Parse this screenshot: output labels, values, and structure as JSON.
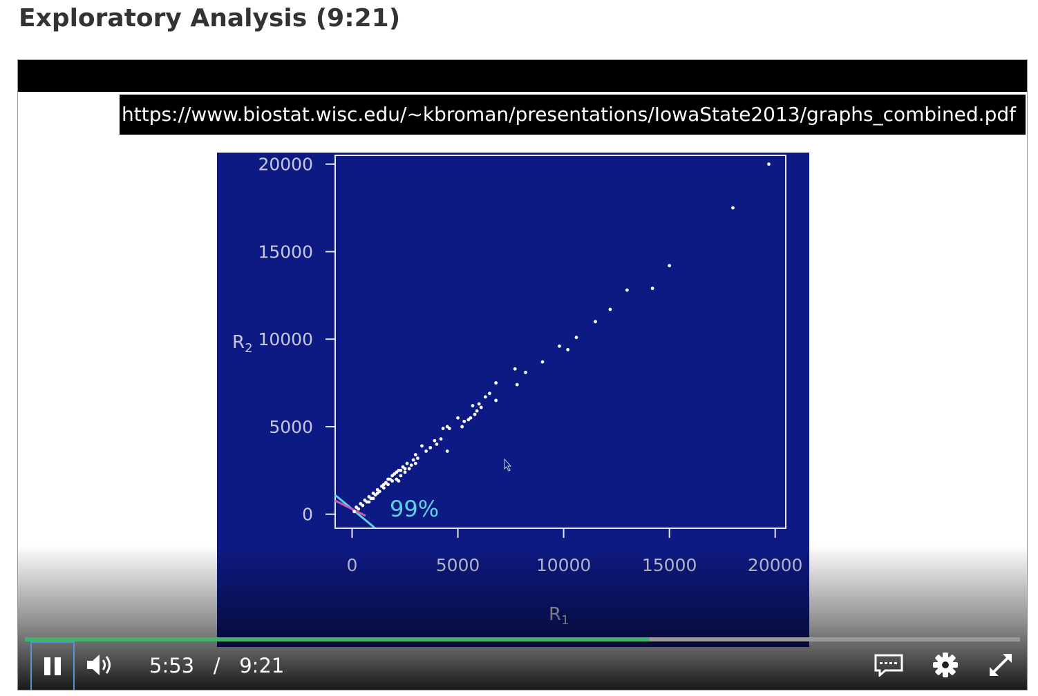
{
  "page": {
    "title": "Exploratory Analysis (9:21)"
  },
  "video": {
    "url_banner": "https://www.biostat.wisc.edu/~kbroman/presentations/IowaState2013/graphs_combined.pdf",
    "current_time": "5:53",
    "time_separator": "/",
    "duration": "9:21",
    "progress_fraction": 0.628,
    "controls": {
      "play_pause_icon": "pause-icon",
      "volume_icon": "volume-icon",
      "captions_icon": "captions-icon",
      "settings_icon": "gear-icon",
      "fullscreen_icon": "fullscreen-icon"
    },
    "colors": {
      "progress_played": "#3fb36b",
      "slide_background": "#0e1a84",
      "annotation": "#5fd0e6",
      "annotation_secondary": "#c45bb8"
    }
  },
  "chart_data": {
    "type": "scatter",
    "xlabel": "R1",
    "ylabel": "R2",
    "xlim": [
      -800,
      20500
    ],
    "ylim": [
      -800,
      20500
    ],
    "xticks": [
      0,
      5000,
      10000,
      15000,
      20000
    ],
    "yticks": [
      0,
      5000,
      10000,
      15000,
      20000
    ],
    "xtick_labels": [
      "0",
      "5000",
      "10000",
      "15000",
      "20000"
    ],
    "ytick_labels": [
      "0",
      "5000",
      "10000",
      "15000",
      "20000"
    ],
    "annotation": "99%",
    "points": [
      [
        19700,
        20000
      ],
      [
        18000,
        17500
      ],
      [
        15000,
        14200
      ],
      [
        14200,
        12900
      ],
      [
        13000,
        12800
      ],
      [
        12200,
        11700
      ],
      [
        11500,
        11000
      ],
      [
        10600,
        10100
      ],
      [
        10200,
        9400
      ],
      [
        9800,
        9600
      ],
      [
        9000,
        8700
      ],
      [
        8200,
        8100
      ],
      [
        7800,
        7400
      ],
      [
        7700,
        8300
      ],
      [
        6800,
        7500
      ],
      [
        6800,
        6500
      ],
      [
        6500,
        6900
      ],
      [
        6300,
        6700
      ],
      [
        6100,
        6100
      ],
      [
        6000,
        6300
      ],
      [
        5900,
        5900
      ],
      [
        5800,
        5700
      ],
      [
        5700,
        6200
      ],
      [
        5600,
        5500
      ],
      [
        5500,
        5400
      ],
      [
        5300,
        5300
      ],
      [
        5200,
        5000
      ],
      [
        5000,
        5500
      ],
      [
        4600,
        4900
      ],
      [
        4500,
        5000
      ],
      [
        4500,
        3600
      ],
      [
        4300,
        4900
      ],
      [
        4200,
        4300
      ],
      [
        4000,
        4000
      ],
      [
        3900,
        4200
      ],
      [
        3700,
        3800
      ],
      [
        3500,
        3600
      ],
      [
        3300,
        3900
      ],
      [
        3100,
        3200
      ],
      [
        3000,
        2900
      ],
      [
        3000,
        3400
      ],
      [
        2900,
        3100
      ],
      [
        2800,
        2800
      ],
      [
        2700,
        2600
      ],
      [
        2600,
        2900
      ],
      [
        2500,
        2400
      ],
      [
        2400,
        2700
      ],
      [
        2300,
        2200
      ],
      [
        2200,
        2500
      ],
      [
        2100,
        2000
      ],
      [
        2000,
        2300
      ],
      [
        1900,
        1900
      ],
      [
        1800,
        2000
      ],
      [
        1700,
        1700
      ],
      [
        1600,
        1800
      ],
      [
        1500,
        1500
      ],
      [
        1400,
        1600
      ],
      [
        1300,
        1300
      ],
      [
        1200,
        1400
      ],
      [
        1100,
        1100
      ],
      [
        1000,
        1200
      ],
      [
        900,
        900
      ],
      [
        800,
        1000
      ],
      [
        700,
        700
      ],
      [
        600,
        800
      ],
      [
        500,
        500
      ],
      [
        400,
        600
      ],
      [
        300,
        300
      ],
      [
        200,
        400
      ],
      [
        100,
        150
      ],
      [
        1900,
        2200
      ],
      [
        2100,
        2400
      ],
      [
        2300,
        2500
      ],
      [
        1500,
        1700
      ],
      [
        1200,
        1200
      ],
      [
        1700,
        2000
      ],
      [
        2500,
        2600
      ],
      [
        2200,
        1900
      ],
      [
        1000,
        900
      ],
      [
        800,
        700
      ]
    ]
  }
}
